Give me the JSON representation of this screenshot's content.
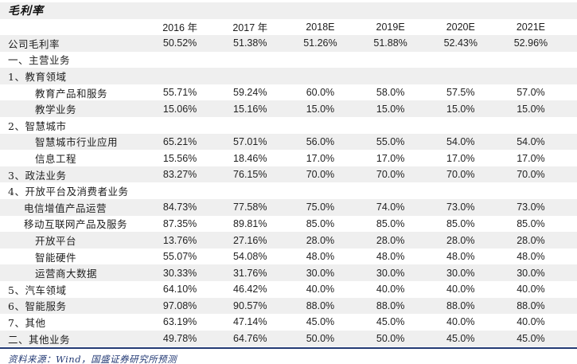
{
  "title": "毛利率",
  "colors": {
    "band_gray": "#efefef",
    "rule_navy": "#233a74",
    "footer_navy": "#233a74",
    "text": "#1e1e1e"
  },
  "table": {
    "columns": [
      "2016 年",
      "2017 年",
      "2018E",
      "2019E",
      "2020E",
      "2021E"
    ],
    "rows": [
      {
        "label": "公司毛利率",
        "indent": 0,
        "values": [
          "50.52%",
          "51.38%",
          "51.26%",
          "51.88%",
          "52.43%",
          "52.96%"
        ]
      },
      {
        "label": "一、主营业务",
        "indent": 0,
        "values": [
          "",
          "",
          "",
          "",
          "",
          ""
        ]
      },
      {
        "label": "1、教育领域",
        "indent": 0,
        "values": [
          "",
          "",
          "",
          "",
          "",
          ""
        ]
      },
      {
        "label": "教育产品和服务",
        "indent": 2,
        "values": [
          "55.71%",
          "59.24%",
          "60.0%",
          "58.0%",
          "57.5%",
          "57.0%"
        ]
      },
      {
        "label": "教学业务",
        "indent": 2,
        "values": [
          "15.06%",
          "15.16%",
          "15.0%",
          "15.0%",
          "15.0%",
          "15.0%"
        ]
      },
      {
        "label": "2、智慧城市",
        "indent": 0,
        "values": [
          "",
          "",
          "",
          "",
          "",
          ""
        ]
      },
      {
        "label": "智慧城市行业应用",
        "indent": 2,
        "values": [
          "65.21%",
          "57.01%",
          "56.0%",
          "55.0%",
          "54.0%",
          "54.0%"
        ]
      },
      {
        "label": "信息工程",
        "indent": 2,
        "values": [
          "15.56%",
          "18.46%",
          "17.0%",
          "17.0%",
          "17.0%",
          "17.0%"
        ]
      },
      {
        "label": "3、政法业务",
        "indent": 0,
        "values": [
          "83.27%",
          "76.15%",
          "70.0%",
          "70.0%",
          "70.0%",
          "70.0%"
        ]
      },
      {
        "label": "4、开放平台及消费者业务",
        "indent": 0,
        "values": [
          "",
          "",
          "",
          "",
          "",
          ""
        ]
      },
      {
        "label": "电信增值产品运营",
        "indent": 1,
        "values": [
          "84.73%",
          "77.58%",
          "75.0%",
          "74.0%",
          "73.0%",
          "73.0%"
        ]
      },
      {
        "label": "移动互联网产品及服务",
        "indent": 1,
        "values": [
          "87.35%",
          "89.81%",
          "85.0%",
          "85.0%",
          "85.0%",
          "85.0%"
        ]
      },
      {
        "label": "开放平台",
        "indent": 2,
        "values": [
          "13.76%",
          "27.16%",
          "28.0%",
          "28.0%",
          "28.0%",
          "28.0%"
        ]
      },
      {
        "label": "智能硬件",
        "indent": 2,
        "values": [
          "55.07%",
          "54.08%",
          "48.0%",
          "48.0%",
          "48.0%",
          "48.0%"
        ]
      },
      {
        "label": "运营商大数据",
        "indent": 2,
        "values": [
          "30.33%",
          "31.76%",
          "30.0%",
          "30.0%",
          "30.0%",
          "30.0%"
        ]
      },
      {
        "label": "5、汽车领域",
        "indent": 0,
        "values": [
          "64.10%",
          "46.42%",
          "40.0%",
          "40.0%",
          "40.0%",
          "40.0%"
        ]
      },
      {
        "label": "6、智能服务",
        "indent": 0,
        "values": [
          "97.08%",
          "90.57%",
          "88.0%",
          "88.0%",
          "88.0%",
          "88.0%"
        ]
      },
      {
        "label": "7、其他",
        "indent": 0,
        "values": [
          "63.19%",
          "47.14%",
          "45.0%",
          "45.0%",
          "40.0%",
          "40.0%"
        ]
      },
      {
        "label": "二、其他业务",
        "indent": 0,
        "values": [
          "49.78%",
          "64.76%",
          "50.0%",
          "50.0%",
          "45.0%",
          "45.0%"
        ]
      }
    ]
  },
  "footer": {
    "source": "资料来源：Wind，国盛证券研究所预测"
  }
}
